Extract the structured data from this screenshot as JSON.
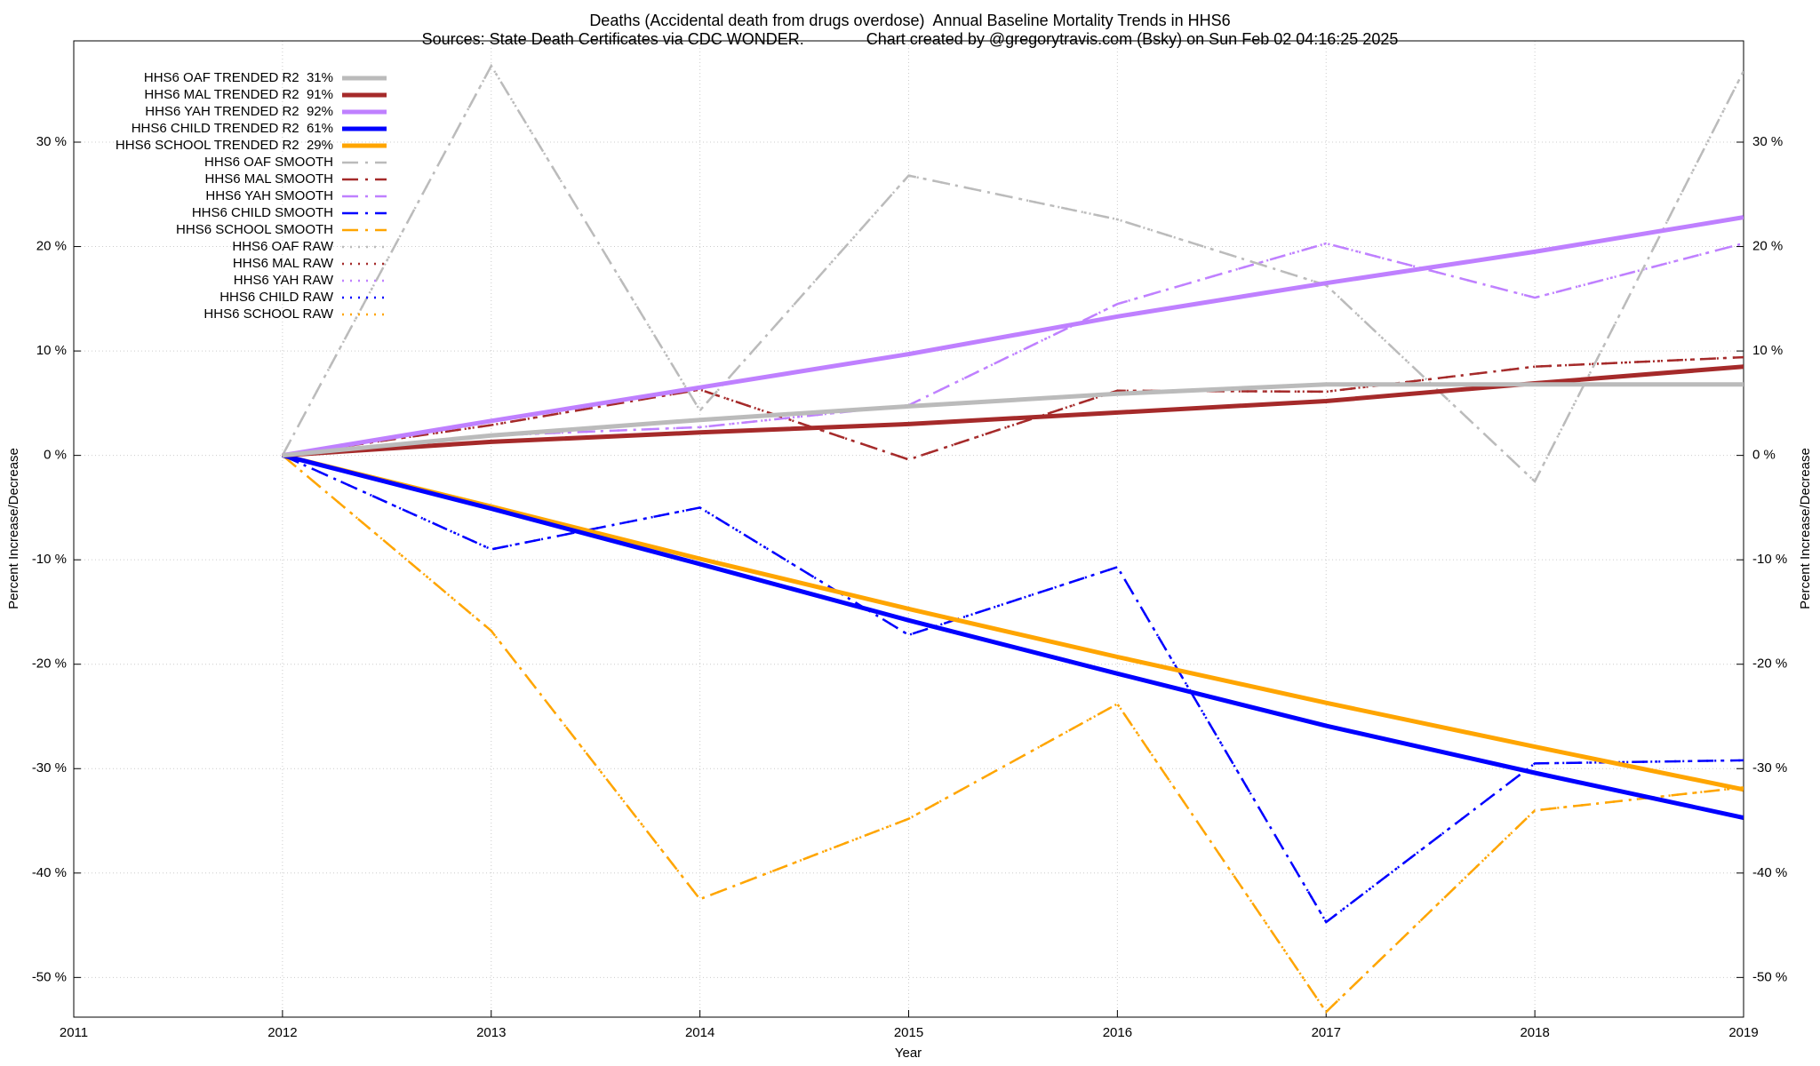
{
  "chart_data": {
    "type": "line",
    "title": "Deaths (Accidental death from drugs overdose)  Annual Baseline Mortality Trends in HHS6",
    "subtitle": "Sources: State Death Certificates via CDC WONDER.              Chart created by @gregorytravis.com (Bsky) on Sun Feb 02 04:16:25 2025",
    "x_label": "Year",
    "y_label": "Percent Increase/Decrease",
    "y2_label": "Percent Increase/Decrease",
    "x": [
      2012,
      2013,
      2014,
      2015,
      2016,
      2017,
      2018,
      2019
    ],
    "xlim": [
      2011,
      2019
    ],
    "xticks": [
      2011,
      2012,
      2013,
      2014,
      2015,
      2016,
      2017,
      2018,
      2019
    ],
    "ylim": [
      -53.8,
      39.7
    ],
    "yticks": [
      {
        "value": -50,
        "label": "-50 %"
      },
      {
        "value": -40,
        "label": "-40 %"
      },
      {
        "value": -30,
        "label": "-30 %"
      },
      {
        "value": -20,
        "label": "-20 %"
      },
      {
        "value": -10,
        "label": "-10 %"
      },
      {
        "value": 0,
        "label": "0 %"
      },
      {
        "value": 10,
        "label": "10 %"
      },
      {
        "value": 20,
        "label": "20 %"
      },
      {
        "value": 30,
        "label": "30 %"
      }
    ],
    "grid": true,
    "legend": "upper left",
    "series": [
      {
        "name": "HHS6 OAF TRENDED R2  31%",
        "color": "#bbbbbb",
        "style": "solid",
        "values": [
          0,
          1.9,
          3.4,
          4.7,
          5.9,
          6.8,
          6.8,
          6.8
        ]
      },
      {
        "name": "HHS6 MAL TRENDED R2  91%",
        "color": "#a52a2a",
        "style": "solid",
        "values": [
          0,
          1.3,
          2.2,
          3.0,
          4.1,
          5.2,
          6.9,
          8.5
        ]
      },
      {
        "name": "HHS6 YAH TRENDED R2  92%",
        "color": "#bf80ff",
        "style": "solid",
        "values": [
          0,
          3.3,
          6.5,
          9.7,
          13.3,
          16.5,
          19.5,
          22.8
        ]
      },
      {
        "name": "HHS6 CHILD TRENDED R2  61%",
        "color": "#0000ff",
        "style": "solid",
        "values": [
          0,
          -5.1,
          -10.4,
          -15.8,
          -20.9,
          -25.9,
          -30.4,
          -34.7
        ]
      },
      {
        "name": "HHS6 SCHOOL TRENDED R2  29%",
        "color": "#ffa500",
        "style": "solid",
        "values": [
          0,
          -4.9,
          -9.9,
          -14.7,
          -19.3,
          -23.7,
          -27.9,
          -32.0
        ]
      },
      {
        "name": "HHS6 OAF SMOOTH",
        "color": "#bbbbbb",
        "style": "dashdot",
        "values": [
          0,
          37.3,
          4.3,
          26.8,
          22.6,
          16.3,
          -2.5,
          36.8
        ]
      },
      {
        "name": "HHS6 MAL SMOOTH",
        "color": "#a52a2a",
        "style": "dashdot",
        "values": [
          0,
          2.9,
          6.3,
          -0.4,
          6.2,
          6.1,
          8.5,
          9.4
        ]
      },
      {
        "name": "HHS6 YAH SMOOTH",
        "color": "#bf80ff",
        "style": "dashdot",
        "values": [
          0,
          1.9,
          2.7,
          4.8,
          14.5,
          20.3,
          15.1,
          20.3
        ]
      },
      {
        "name": "HHS6 CHILD SMOOTH",
        "color": "#0000ff",
        "style": "dashdot",
        "values": [
          0,
          -9.0,
          -5.0,
          -17.2,
          -10.7,
          -44.7,
          -29.5,
          -29.2
        ]
      },
      {
        "name": "HHS6 SCHOOL SMOOTH",
        "color": "#ffa500",
        "style": "dashdot",
        "values": [
          0,
          -16.8,
          -42.5,
          -34.8,
          -23.8,
          -53.3,
          -34.0,
          -31.8
        ]
      },
      {
        "name": "HHS6 OAF RAW",
        "color": "#bbbbbb",
        "style": "dotted",
        "values": [
          0,
          37.3,
          4.3,
          26.8,
          22.6,
          16.3,
          -2.5,
          36.8
        ]
      },
      {
        "name": "HHS6 MAL RAW",
        "color": "#a52a2a",
        "style": "dotted",
        "values": [
          0,
          2.9,
          6.3,
          -0.4,
          6.2,
          6.1,
          8.5,
          9.4
        ]
      },
      {
        "name": "HHS6 YAH RAW",
        "color": "#bf80ff",
        "style": "dotted",
        "values": [
          0,
          1.9,
          2.7,
          4.8,
          14.5,
          20.3,
          15.1,
          20.3
        ]
      },
      {
        "name": "HHS6 CHILD RAW",
        "color": "#0000ff",
        "style": "dotted",
        "values": [
          0,
          -9.0,
          -5.0,
          -17.2,
          -10.7,
          -44.7,
          -29.5,
          -29.2
        ]
      },
      {
        "name": "HHS6 SCHOOL RAW",
        "color": "#ffa500",
        "style": "dotted",
        "values": [
          0,
          -16.8,
          -42.5,
          -34.8,
          -23.8,
          -53.3,
          -34.0,
          -31.8
        ]
      }
    ]
  }
}
